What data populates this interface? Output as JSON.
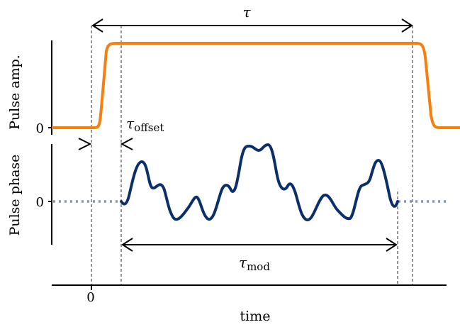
{
  "labels": {
    "tau": "τ",
    "tau_offset_symbol": "τ",
    "tau_offset_subscript": "offset",
    "tau_mod_symbol": "τ",
    "tau_mod_subscript": "mod",
    "y_axis_amp": "Pulse amp.",
    "y_axis_phase": "Pulse phase",
    "amp_zero": "0",
    "phase_zero": "0",
    "time_zero": "0",
    "x_axis": "time"
  },
  "colors": {
    "amplitude": "#f77f0e",
    "phase": "#0b2f6b",
    "phase_baseline": "#8195b2",
    "guide": "#7a7a7a",
    "axis": "#000000"
  },
  "curves": {
    "amplitude": "smooth pulse rising after time 0 and falling after τ",
    "phase": "oscillating modulation inside τ_mod, flat (dotted) zero elsewhere"
  }
}
